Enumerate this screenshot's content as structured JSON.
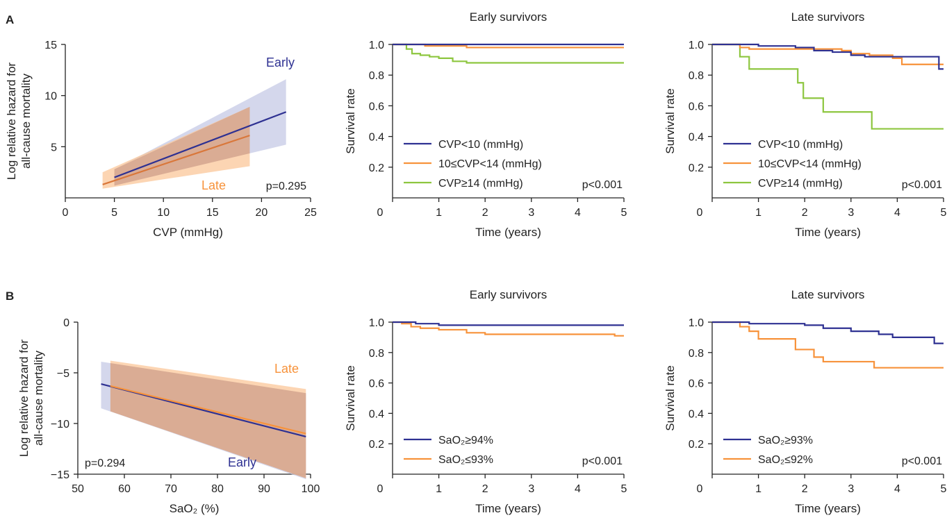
{
  "panels": {
    "A": {
      "letter": "A"
    },
    "B": {
      "letter": "B"
    }
  },
  "colors": {
    "early": "#2e3192",
    "late": "#f7923a",
    "late_line_A": "#d9773a",
    "green": "#8dc63f",
    "early_band": "#c5c9e6",
    "late_band": "#fbc79a",
    "overlap_band": "#c7937f",
    "axis": "#222222"
  },
  "chart_data": [
    {
      "id": "A-regression",
      "type": "line",
      "title": "",
      "xlabel": "CVP (mmHg)",
      "ylabel": [
        "Log relative hazard for",
        "all-cause mortality"
      ],
      "xlim": [
        0,
        25
      ],
      "ylim": [
        0,
        15
      ],
      "xticks": [
        0,
        5,
        10,
        15,
        20,
        25
      ],
      "yticks": [
        5,
        10,
        15
      ],
      "annotations": {
        "pvalue": "p=0.295"
      },
      "series": [
        {
          "name": "Early",
          "color": "#2e3192",
          "x": [
            5,
            22.5
          ],
          "y": [
            2.0,
            8.4
          ],
          "band_upper": [
            2.8,
            11.6
          ],
          "band_lower": [
            1.2,
            5.2
          ]
        },
        {
          "name": "Late",
          "color": "#d9773a",
          "x": [
            3.8,
            18.8
          ],
          "y": [
            1.3,
            6.1
          ],
          "band_upper": [
            2.5,
            8.9
          ],
          "band_lower": [
            0.9,
            3.1
          ]
        }
      ]
    },
    {
      "id": "A-early",
      "type": "line",
      "title": "Early survivors",
      "xlabel": "Time (years)",
      "ylabel": "Survival rate",
      "xlim": [
        0,
        5
      ],
      "ylim": [
        0,
        1.0
      ],
      "xticks": [
        0,
        1,
        2,
        3,
        4,
        5
      ],
      "yticks": [
        0.2,
        0.4,
        0.6,
        0.8,
        1.0
      ],
      "annotations": {
        "pvalue": "p<0.001"
      },
      "series": [
        {
          "name": "CVP<10 (mmHg)",
          "color": "#2e3192",
          "x": [
            0,
            5
          ],
          "y": [
            1.0,
            1.0
          ]
        },
        {
          "name": "10≤CVP<14 (mmHg)",
          "color": "#f7923a",
          "x": [
            0,
            0.7,
            1.6,
            5
          ],
          "y": [
            1.0,
            0.99,
            0.98,
            0.98
          ]
        },
        {
          "name": "CVP≥14 (mmHg)",
          "color": "#8dc63f",
          "x": [
            0,
            0.3,
            0.42,
            0.6,
            0.8,
            1.0,
            1.3,
            1.6,
            5
          ],
          "y": [
            1.0,
            0.97,
            0.94,
            0.93,
            0.92,
            0.91,
            0.89,
            0.88,
            0.88
          ]
        }
      ]
    },
    {
      "id": "A-late",
      "type": "line",
      "title": "Late survivors",
      "xlabel": "Time (years)",
      "ylabel": "Survival rate",
      "xlim": [
        0,
        5
      ],
      "ylim": [
        0,
        1.0
      ],
      "xticks": [
        0,
        1,
        2,
        3,
        4,
        5
      ],
      "yticks": [
        0.2,
        0.4,
        0.6,
        0.8,
        1.0
      ],
      "annotations": {
        "pvalue": "p<0.001"
      },
      "series": [
        {
          "name": "CVP<10 (mmHg)",
          "color": "#2e3192",
          "x": [
            0,
            1.0,
            1.8,
            2.2,
            2.6,
            3.0,
            3.3,
            4.3,
            4.9,
            5
          ],
          "y": [
            1.0,
            0.99,
            0.98,
            0.96,
            0.95,
            0.93,
            0.92,
            0.92,
            0.84,
            0.84
          ]
        },
        {
          "name": "10≤CVP<14 (mmHg)",
          "color": "#f7923a",
          "x": [
            0,
            0.6,
            0.8,
            2.8,
            3.0,
            3.4,
            3.9,
            4.1,
            5
          ],
          "y": [
            1.0,
            0.98,
            0.97,
            0.96,
            0.94,
            0.93,
            0.91,
            0.87,
            0.87
          ]
        },
        {
          "name": "CVP≥14 (mmHg)",
          "color": "#8dc63f",
          "x": [
            0,
            0.6,
            0.8,
            1.85,
            1.97,
            2.4,
            3.45,
            5
          ],
          "y": [
            1.0,
            0.92,
            0.84,
            0.75,
            0.65,
            0.56,
            0.45,
            0.45
          ]
        }
      ]
    },
    {
      "id": "B-regression",
      "type": "line",
      "title": "",
      "xlabel": "SaO₂ (%)",
      "ylabel": [
        "Log relative hazard for",
        "all-cause mortality"
      ],
      "xlim": [
        50,
        100
      ],
      "ylim": [
        -15,
        0
      ],
      "xticks": [
        50,
        60,
        70,
        80,
        90,
        100
      ],
      "yticks": [
        0,
        -5,
        -10,
        -15
      ],
      "annotations": {
        "pvalue": "p=0.294"
      },
      "series": [
        {
          "name": "Early",
          "color": "#2e3192",
          "x": [
            55,
            99
          ],
          "y": [
            -6.1,
            -11.3
          ],
          "band_upper": [
            -3.9,
            -7.0
          ],
          "band_lower": [
            -8.5,
            -15.5
          ]
        },
        {
          "name": "Late",
          "color": "#f7923a",
          "x": [
            57,
            99
          ],
          "y": [
            -6.3,
            -11.0
          ],
          "band_upper": [
            -3.8,
            -6.6
          ],
          "band_lower": [
            -8.8,
            -15.4
          ]
        }
      ]
    },
    {
      "id": "B-early",
      "type": "line",
      "title": "Early survivors",
      "xlabel": "Time (years)",
      "ylabel": "Survival rate",
      "xlim": [
        0,
        5
      ],
      "ylim": [
        0,
        1.0
      ],
      "xticks": [
        0,
        1,
        2,
        3,
        4,
        5
      ],
      "yticks": [
        0.2,
        0.4,
        0.6,
        0.8,
        1.0
      ],
      "annotations": {
        "pvalue": "p<0.001"
      },
      "series": [
        {
          "name": "SaO₂≥94%",
          "color": "#2e3192",
          "x": [
            0,
            0.5,
            1.0,
            5
          ],
          "y": [
            1.0,
            0.99,
            0.98,
            0.98
          ]
        },
        {
          "name": "SaO₂≤93%",
          "color": "#f7923a",
          "x": [
            0,
            0.2,
            0.4,
            0.6,
            1.0,
            1.6,
            2.0,
            4.8,
            5
          ],
          "y": [
            1.0,
            0.99,
            0.97,
            0.96,
            0.95,
            0.93,
            0.92,
            0.91,
            0.91
          ]
        }
      ]
    },
    {
      "id": "B-late",
      "type": "line",
      "title": "Late survivors",
      "xlabel": "Time (years)",
      "ylabel": "Survival rate",
      "xlim": [
        0,
        5
      ],
      "ylim": [
        0,
        1.0
      ],
      "xticks": [
        0,
        1,
        2,
        3,
        4,
        5
      ],
      "yticks": [
        0.2,
        0.4,
        0.6,
        0.8,
        1.0
      ],
      "annotations": {
        "pvalue": "p<0.001"
      },
      "series": [
        {
          "name": "SaO₂≥93%",
          "color": "#2e3192",
          "x": [
            0,
            0.8,
            2.0,
            2.4,
            3.0,
            3.6,
            3.9,
            4.8,
            5
          ],
          "y": [
            1.0,
            0.99,
            0.98,
            0.96,
            0.94,
            0.92,
            0.9,
            0.86,
            0.86
          ]
        },
        {
          "name": "SaO₂≤92%",
          "color": "#f7923a",
          "x": [
            0,
            0.6,
            0.8,
            1.0,
            1.8,
            2.2,
            2.4,
            3.5,
            5
          ],
          "y": [
            1.0,
            0.97,
            0.94,
            0.89,
            0.82,
            0.77,
            0.74,
            0.7,
            0.7
          ]
        }
      ]
    }
  ]
}
